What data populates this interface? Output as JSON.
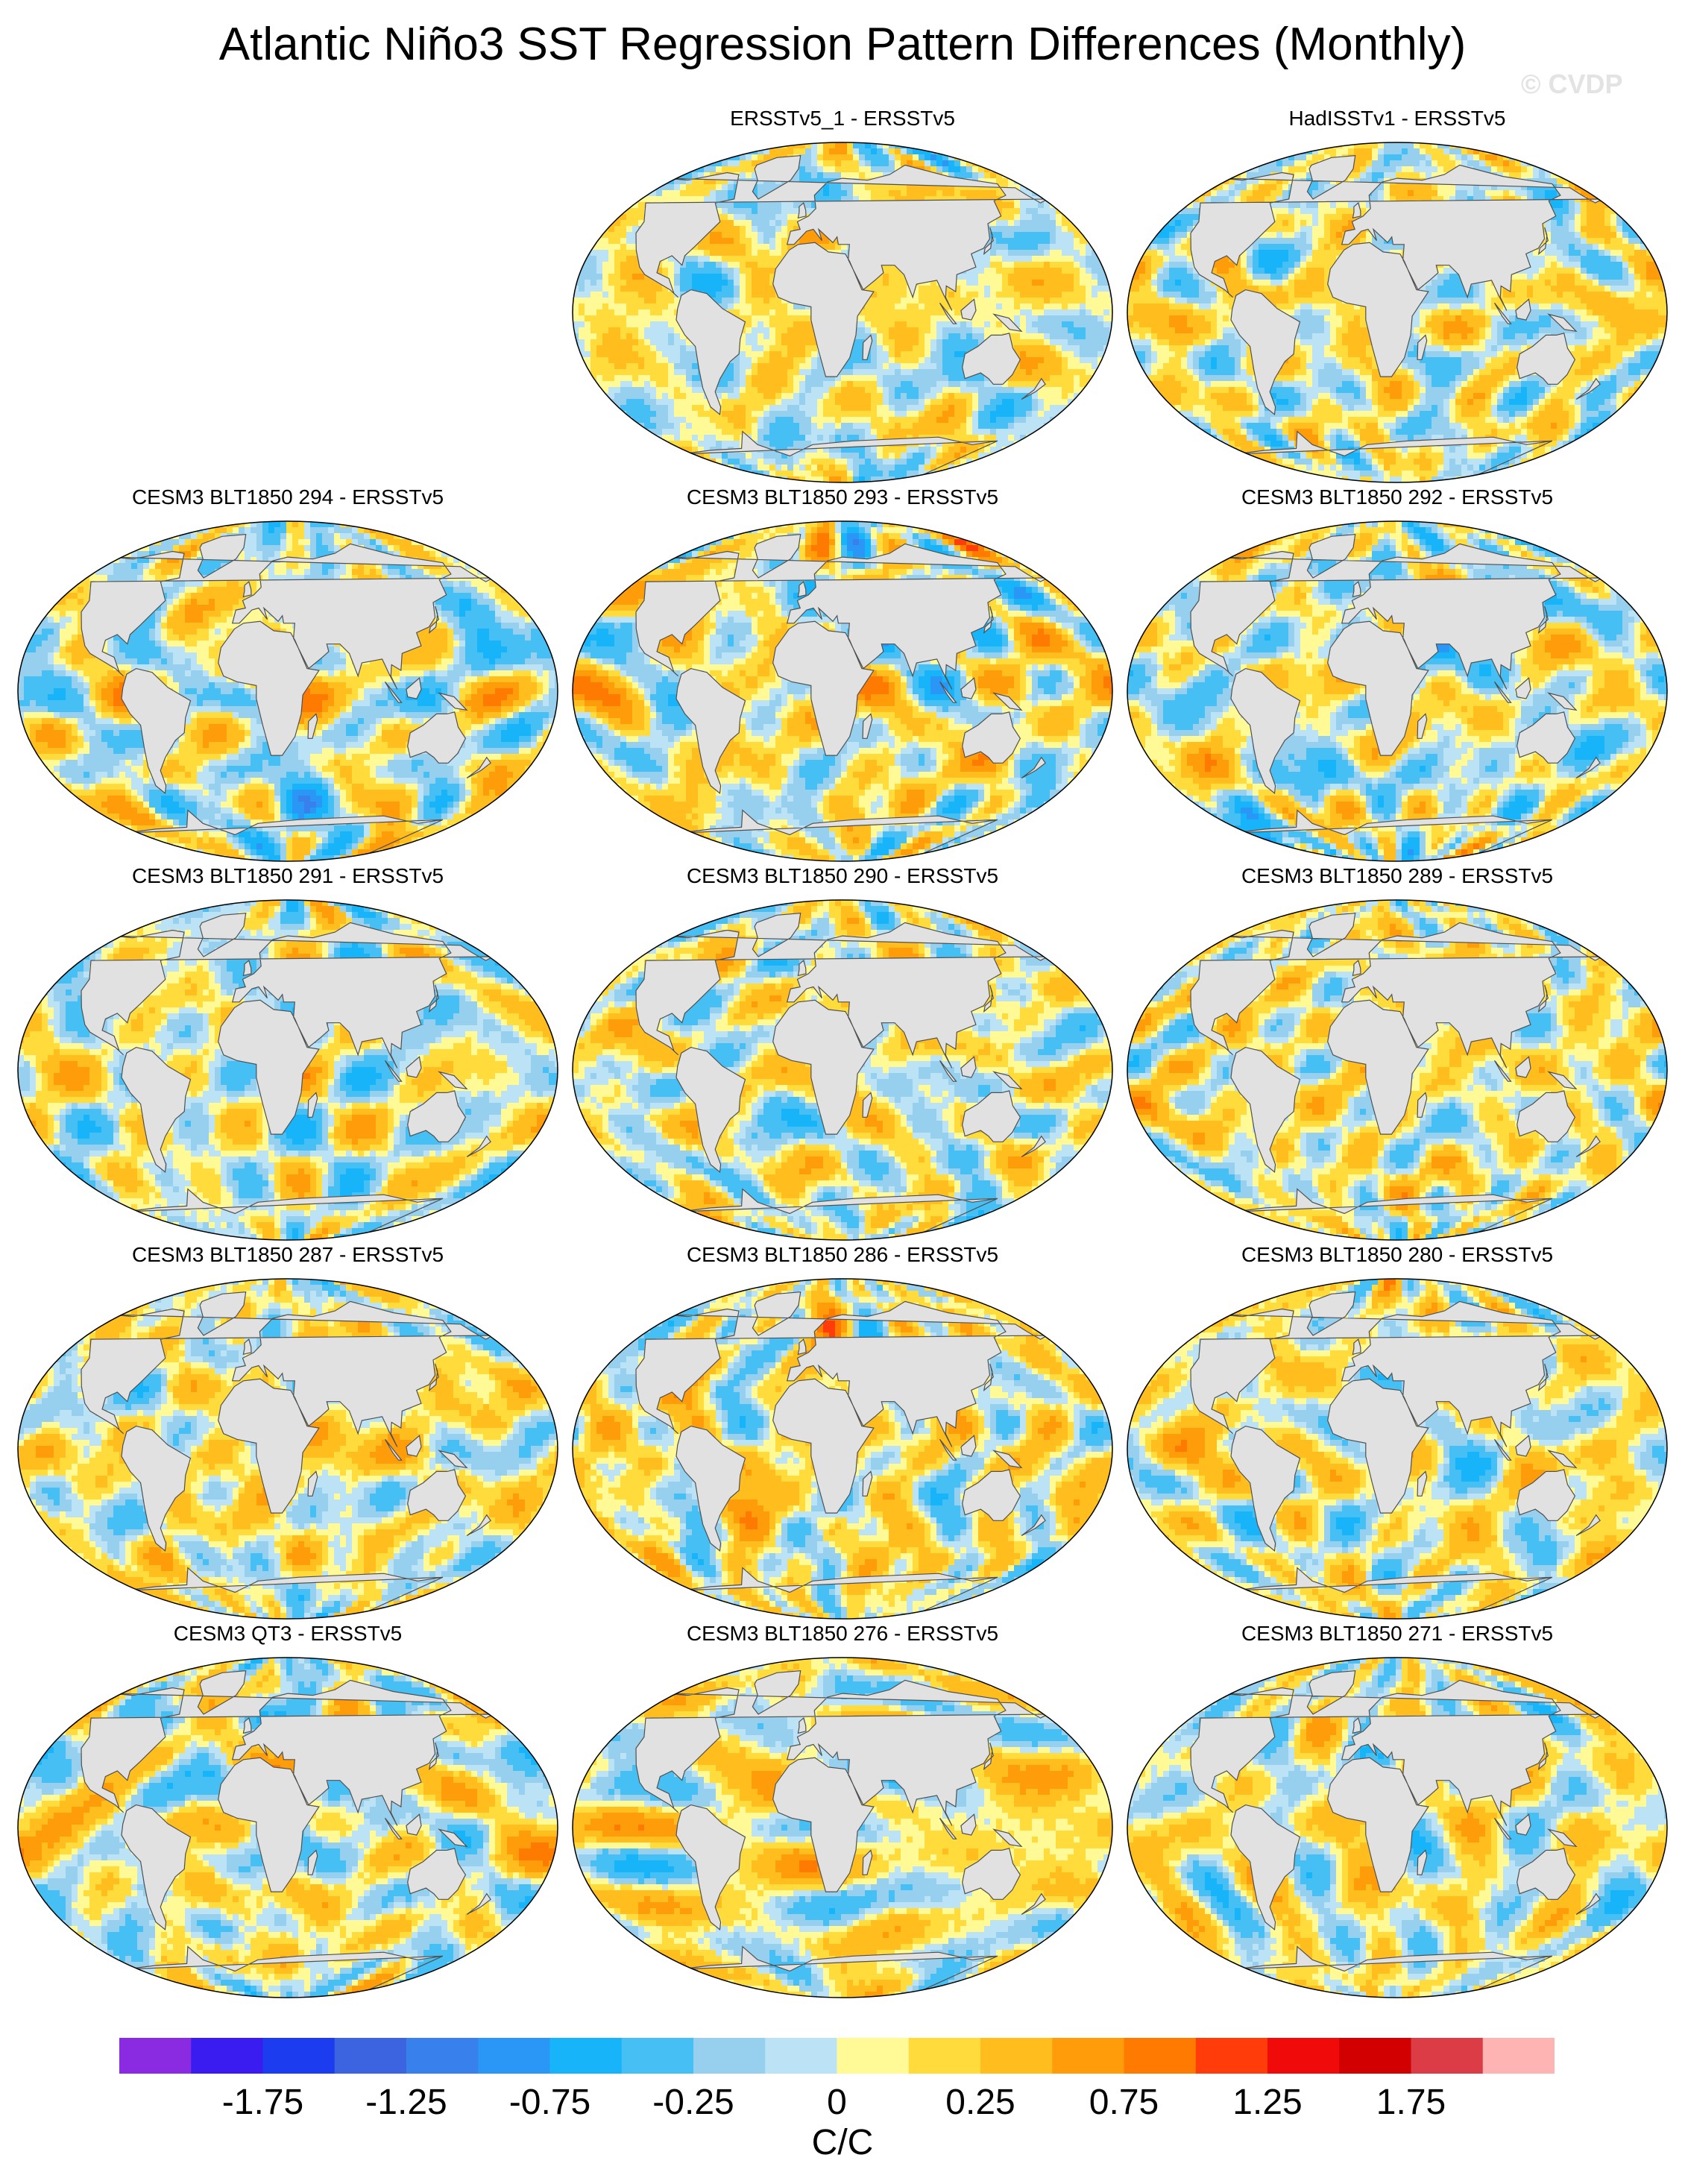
{
  "title": "Atlantic Niño3 SST Regression Pattern Differences (Monthly)",
  "watermark": "© CVDP",
  "chart_data": {
    "type": "heatmap",
    "title": "Atlantic Niño3 SST Regression Pattern Differences (Monthly)",
    "projection": "global map (Robinson-like), land masked grey",
    "grid": false,
    "panels": [
      {
        "title": "ERSSTv5_1 - ERSSTv5",
        "seed": 11,
        "bias": 0.0
      },
      {
        "title": "HadISSTv1 - ERSSTv5",
        "seed": 23,
        "bias": 0.02
      },
      {
        "title": "CESM3 BLT1850 294 - ERSSTv5",
        "seed": 37,
        "bias": 0.0
      },
      {
        "title": "CESM3 BLT1850 293 - ERSSTv5",
        "seed": 41,
        "bias": 0.05
      },
      {
        "title": "CESM3 BLT1850 292 - ERSSTv5",
        "seed": 53,
        "bias": -0.03
      },
      {
        "title": "CESM3 BLT1850 291 - ERSSTv5",
        "seed": 67,
        "bias": 0.0
      },
      {
        "title": "CESM3 BLT1850 290 - ERSSTv5",
        "seed": 71,
        "bias": 0.03
      },
      {
        "title": "CESM3 BLT1850 289 - ERSSTv5",
        "seed": 83,
        "bias": 0.06
      },
      {
        "title": "CESM3 BLT1850 287 - ERSSTv5",
        "seed": 97,
        "bias": 0.06
      },
      {
        "title": "CESM3 BLT1850 286 - ERSSTv5",
        "seed": 101,
        "bias": 0.08
      },
      {
        "title": "CESM3 BLT1850 280 - ERSSTv5",
        "seed": 113,
        "bias": 0.04
      },
      {
        "title": "CESM3 QT3 - ERSSTv5",
        "seed": 127,
        "bias": 0.02
      },
      {
        "title": "CESM3 BLT1850 276 - ERSSTv5",
        "seed": 131,
        "bias": 0.06
      },
      {
        "title": "CESM3 BLT1850 271 - ERSSTv5",
        "seed": 139,
        "bias": 0.04
      }
    ],
    "colorbar": {
      "levels": [
        -2,
        -1.75,
        -1.5,
        -1.25,
        -1,
        -0.75,
        -0.5,
        -0.25,
        -0.1,
        0,
        0.1,
        0.25,
        0.5,
        0.75,
        1,
        1.25,
        1.5,
        1.75,
        2
      ],
      "colors": [
        "#8a2be2",
        "#3a1cf0",
        "#1c3cf0",
        "#3c64e0",
        "#3880ec",
        "#2a96f6",
        "#18b4fa",
        "#46c0f4",
        "#96d0ee",
        "#bce2f6",
        "#fffa96",
        "#ffdc3c",
        "#ffbe1e",
        "#ff9c0a",
        "#ff7a00",
        "#ff3c0a",
        "#f00a0a",
        "#d20000",
        "#dc3c46",
        "#ffb4b4"
      ],
      "tick_labels": [
        "-1.75",
        "-1.25",
        "-0.75",
        "-0.25",
        "0",
        "0.25",
        "0.75",
        "1.25",
        "1.75"
      ],
      "units": "C/C"
    }
  }
}
